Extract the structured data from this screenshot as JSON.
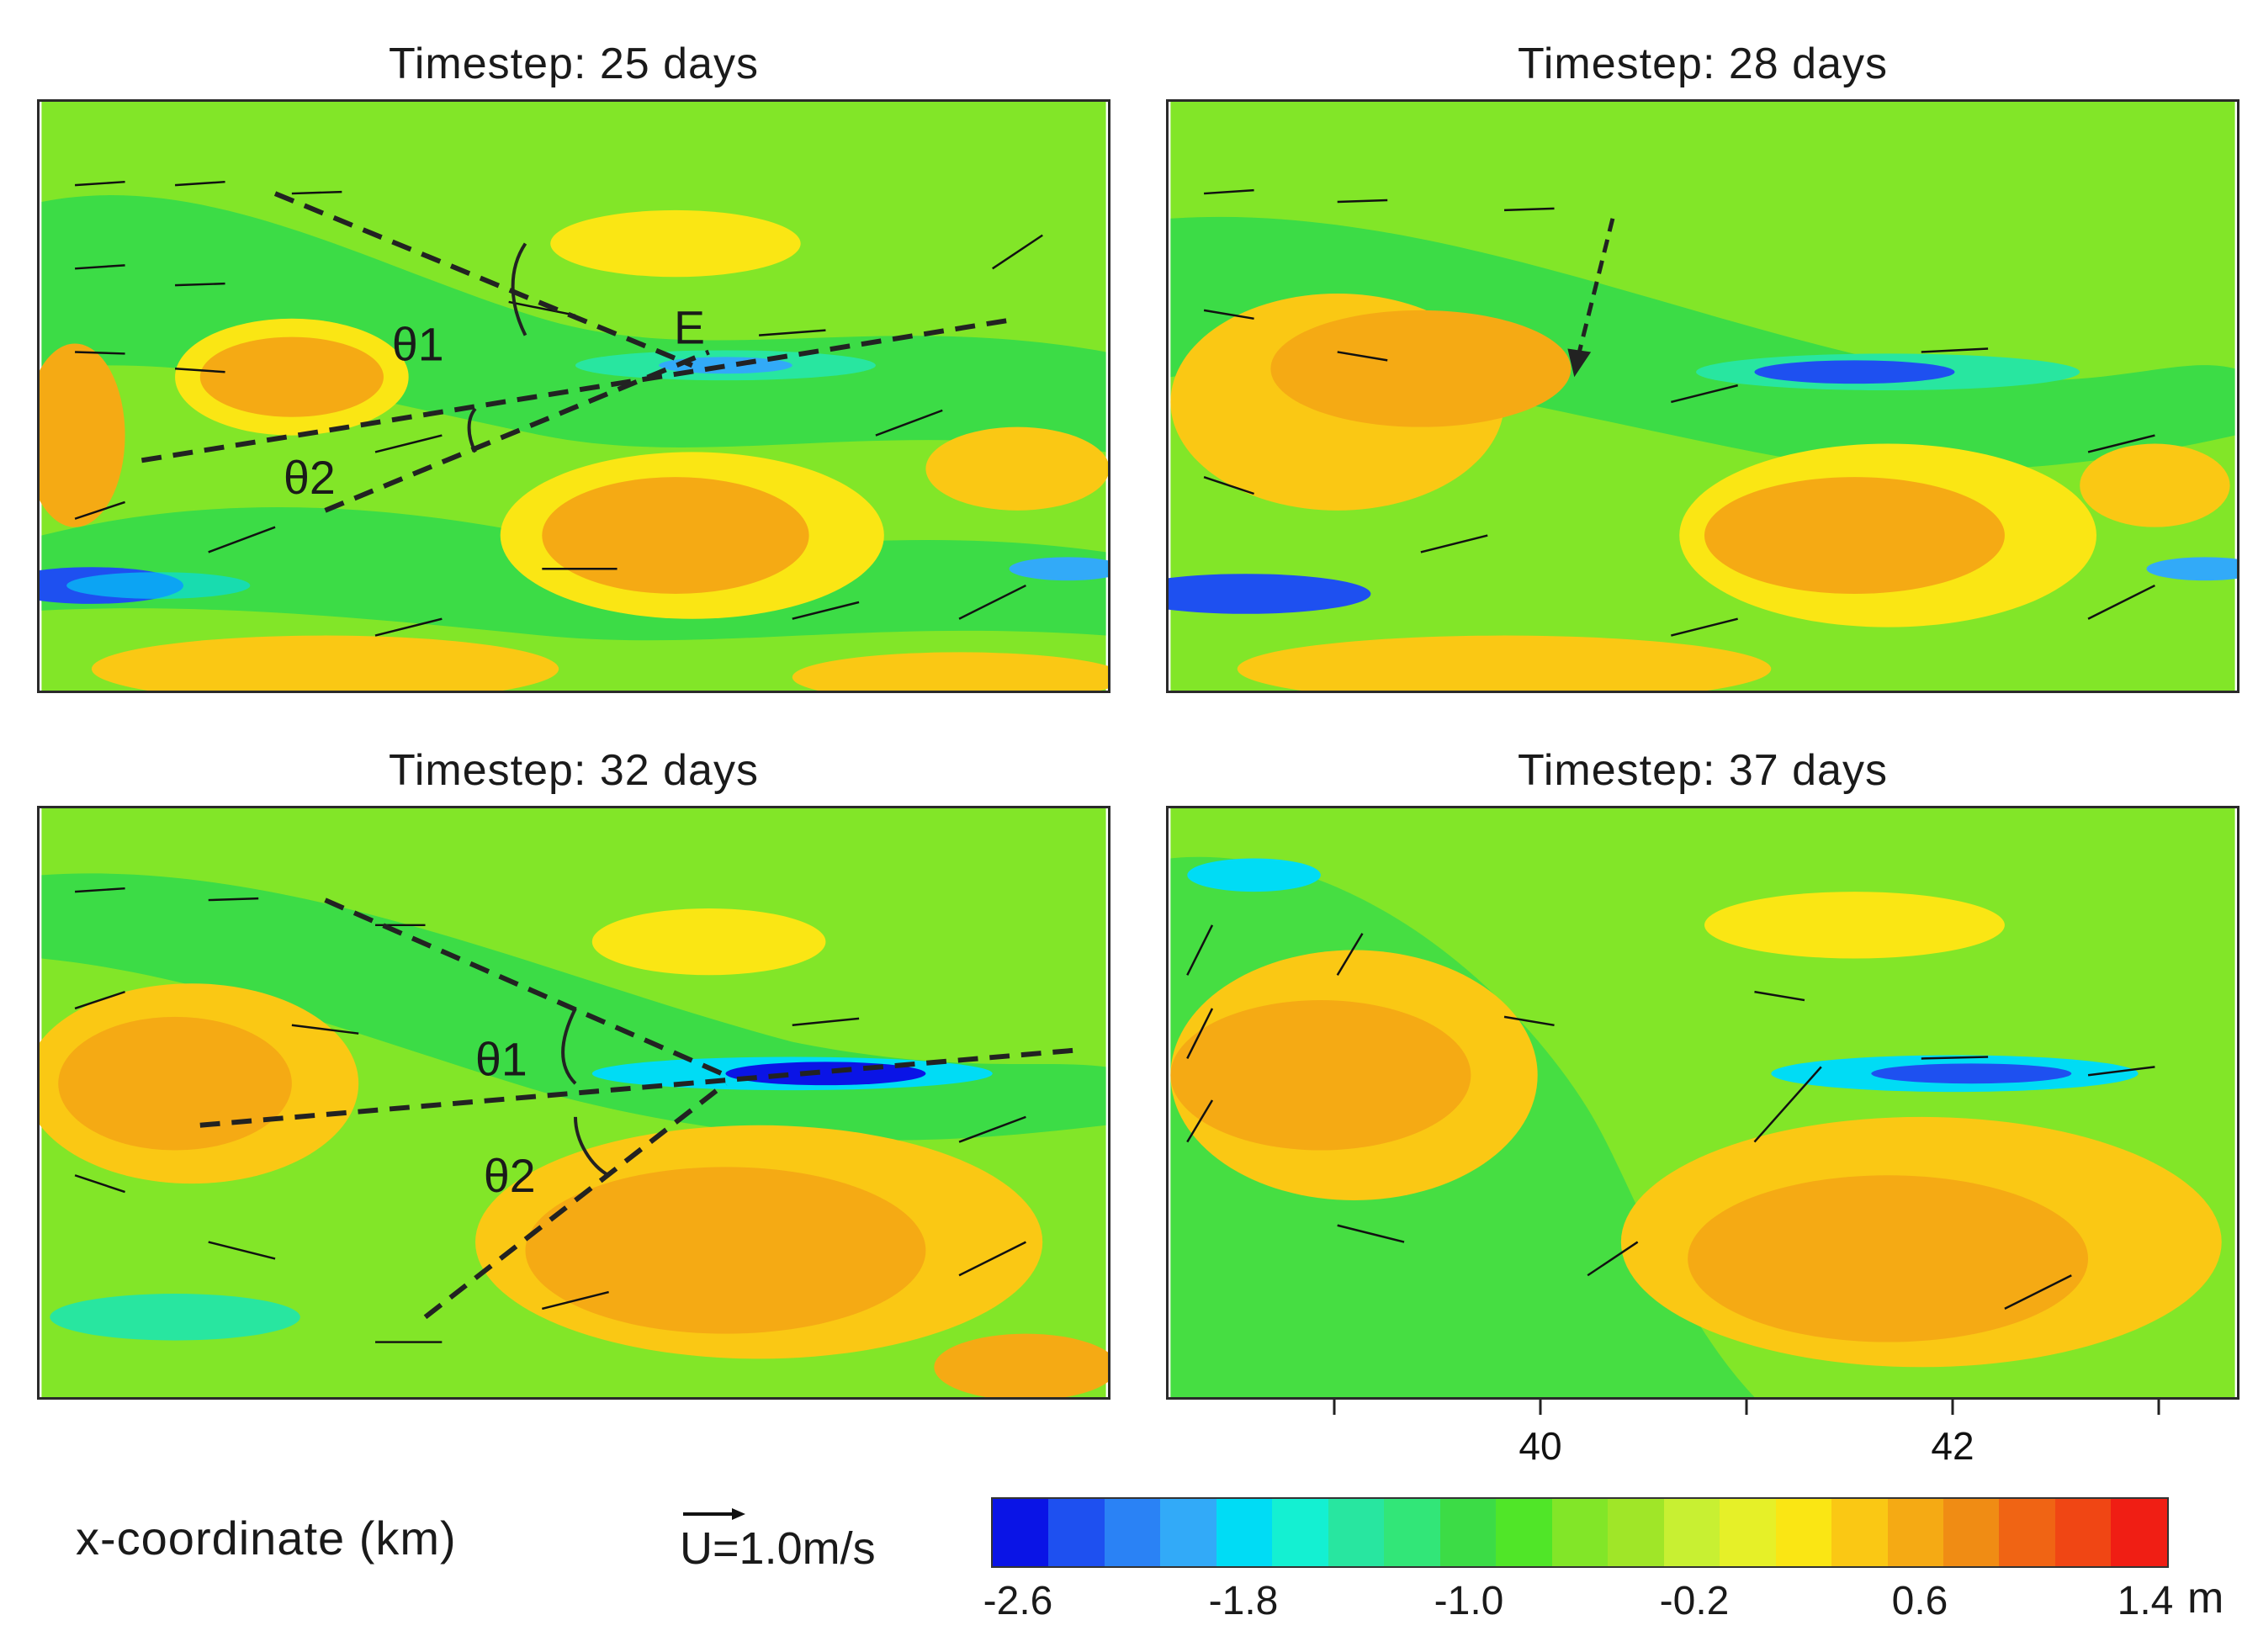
{
  "panels": [
    {
      "title": "Timestep: 25 days",
      "annotations": {
        "theta1": "θ1",
        "theta2": "θ2",
        "point": "E"
      }
    },
    {
      "title": "Timestep: 28 days"
    },
    {
      "title": "Timestep: 32 days",
      "annotations": {
        "theta1": "θ1",
        "theta2": "θ2"
      }
    },
    {
      "title": "Timestep: 37 days"
    }
  ],
  "x_axis": {
    "label": "x-coordinate (km)",
    "tick_labels": [
      "40",
      "42"
    ]
  },
  "vector_legend": {
    "symbol": "U",
    "text": "=1.0m/s"
  },
  "colorbar": {
    "tick_labels": [
      "-2.6",
      "-1.8",
      "-1.0",
      "-0.2",
      "0.6",
      "1.4"
    ],
    "unit": "m",
    "colors": [
      "#0a14e6",
      "#1e50f0",
      "#2a82f5",
      "#32aaf8",
      "#00dcf5",
      "#14f0d2",
      "#28e6a0",
      "#32e678",
      "#3cdc46",
      "#50e628",
      "#82e628",
      "#a0e628",
      "#c8f032",
      "#e6f028",
      "#fae614",
      "#fac814",
      "#f5aa14",
      "#f08c14",
      "#f06414",
      "#f04614",
      "#f01e14"
    ]
  }
}
